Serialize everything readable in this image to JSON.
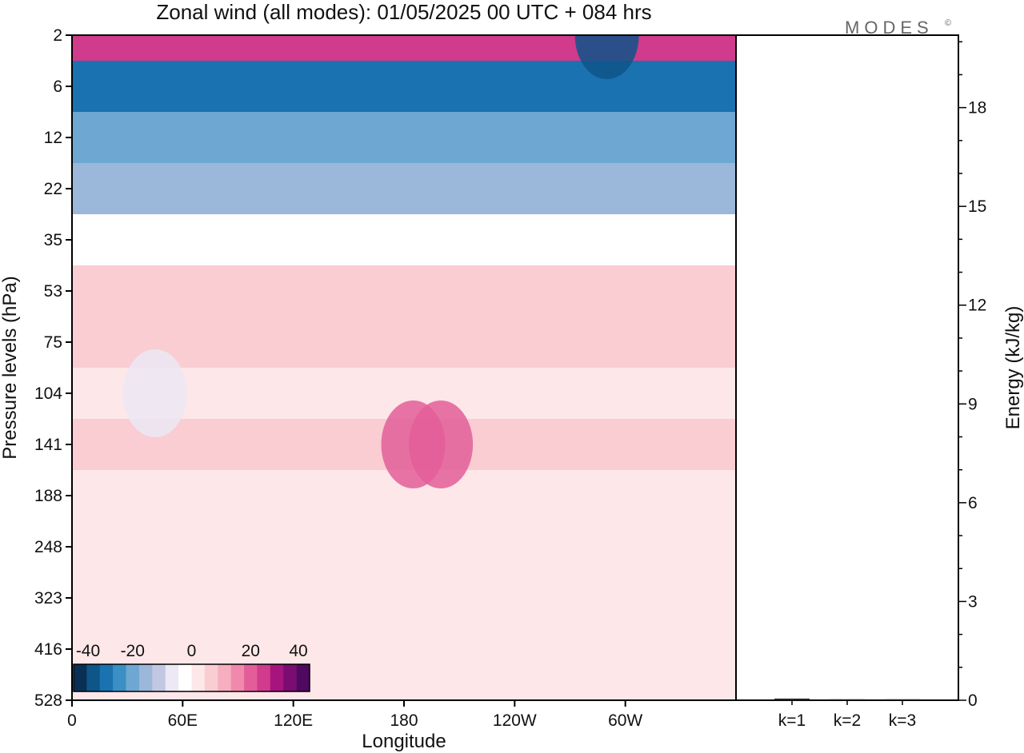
{
  "chart_data": [
    {
      "type": "heatmap",
      "title": "Zonal wind (all modes):  01/05/2025  00 UTC  + 084 hrs",
      "xlabel": "Longitude",
      "ylabel": "Pressure levels (hPa)",
      "x_ticks": [
        "0",
        "60E",
        "120E",
        "180",
        "120W",
        "60W"
      ],
      "x_range_deg": [
        0,
        360
      ],
      "y_ticks": [
        "2",
        "6",
        "12",
        "22",
        "35",
        "53",
        "75",
        "104",
        "141",
        "188",
        "248",
        "323",
        "416",
        "528"
      ],
      "y_scale": "log-pressure, increasing downward",
      "colorbar": {
        "tick_labels": [
          "-40",
          "-20",
          "0",
          "20",
          "40"
        ],
        "range": [
          -40,
          40
        ],
        "colors": [
          "#0a2f55",
          "#0e5588",
          "#1a72b0",
          "#3a8fc4",
          "#6ea7d2",
          "#9bb7d9",
          "#c2c8e2",
          "#ece8f4",
          "#ffffff",
          "#fde7e9",
          "#f9cdd2",
          "#f6aec0",
          "#f189ac",
          "#e35e99",
          "#d03b8c",
          "#a8147d",
          "#7b0c72",
          "#4f0a60"
        ]
      },
      "layers": [
        {
          "pressure": 2,
          "u": 25
        },
        {
          "pressure": 6,
          "u": -30
        },
        {
          "pressure": 12,
          "u": -22
        },
        {
          "pressure": 22,
          "u": -15
        },
        {
          "pressure": 35,
          "u": -2
        },
        {
          "pressure": 53,
          "u": 8
        },
        {
          "pressure": 75,
          "u": 6
        },
        {
          "pressure": 104,
          "u": 4
        },
        {
          "pressure": 141,
          "u": 5
        },
        {
          "pressure": 188,
          "u": 3
        },
        {
          "pressure": 248,
          "u": 1
        },
        {
          "pressure": 323,
          "u": 0
        },
        {
          "pressure": 416,
          "u": 0
        },
        {
          "pressure": 528,
          "u": 0
        }
      ],
      "features": [
        {
          "lon": 200,
          "pressure": 141,
          "u": 22
        },
        {
          "lon": 185,
          "pressure": 141,
          "u": 20
        },
        {
          "lon": 45,
          "pressure": 104,
          "u": -8
        },
        {
          "lon": 290,
          "pressure": 8,
          "u": -35
        }
      ]
    },
    {
      "type": "bar",
      "ylabel": "Energy (kJ/kg)",
      "categories": [
        "k=1",
        "k=2",
        "k=3"
      ],
      "values": [
        0.05,
        0.03,
        0.03
      ],
      "ylim": [
        0,
        20.2
      ],
      "y_ticks": [
        "0",
        "3",
        "6",
        "9",
        "12",
        "15",
        "18"
      ]
    }
  ],
  "branding": "MODES",
  "branding_mark": "©"
}
